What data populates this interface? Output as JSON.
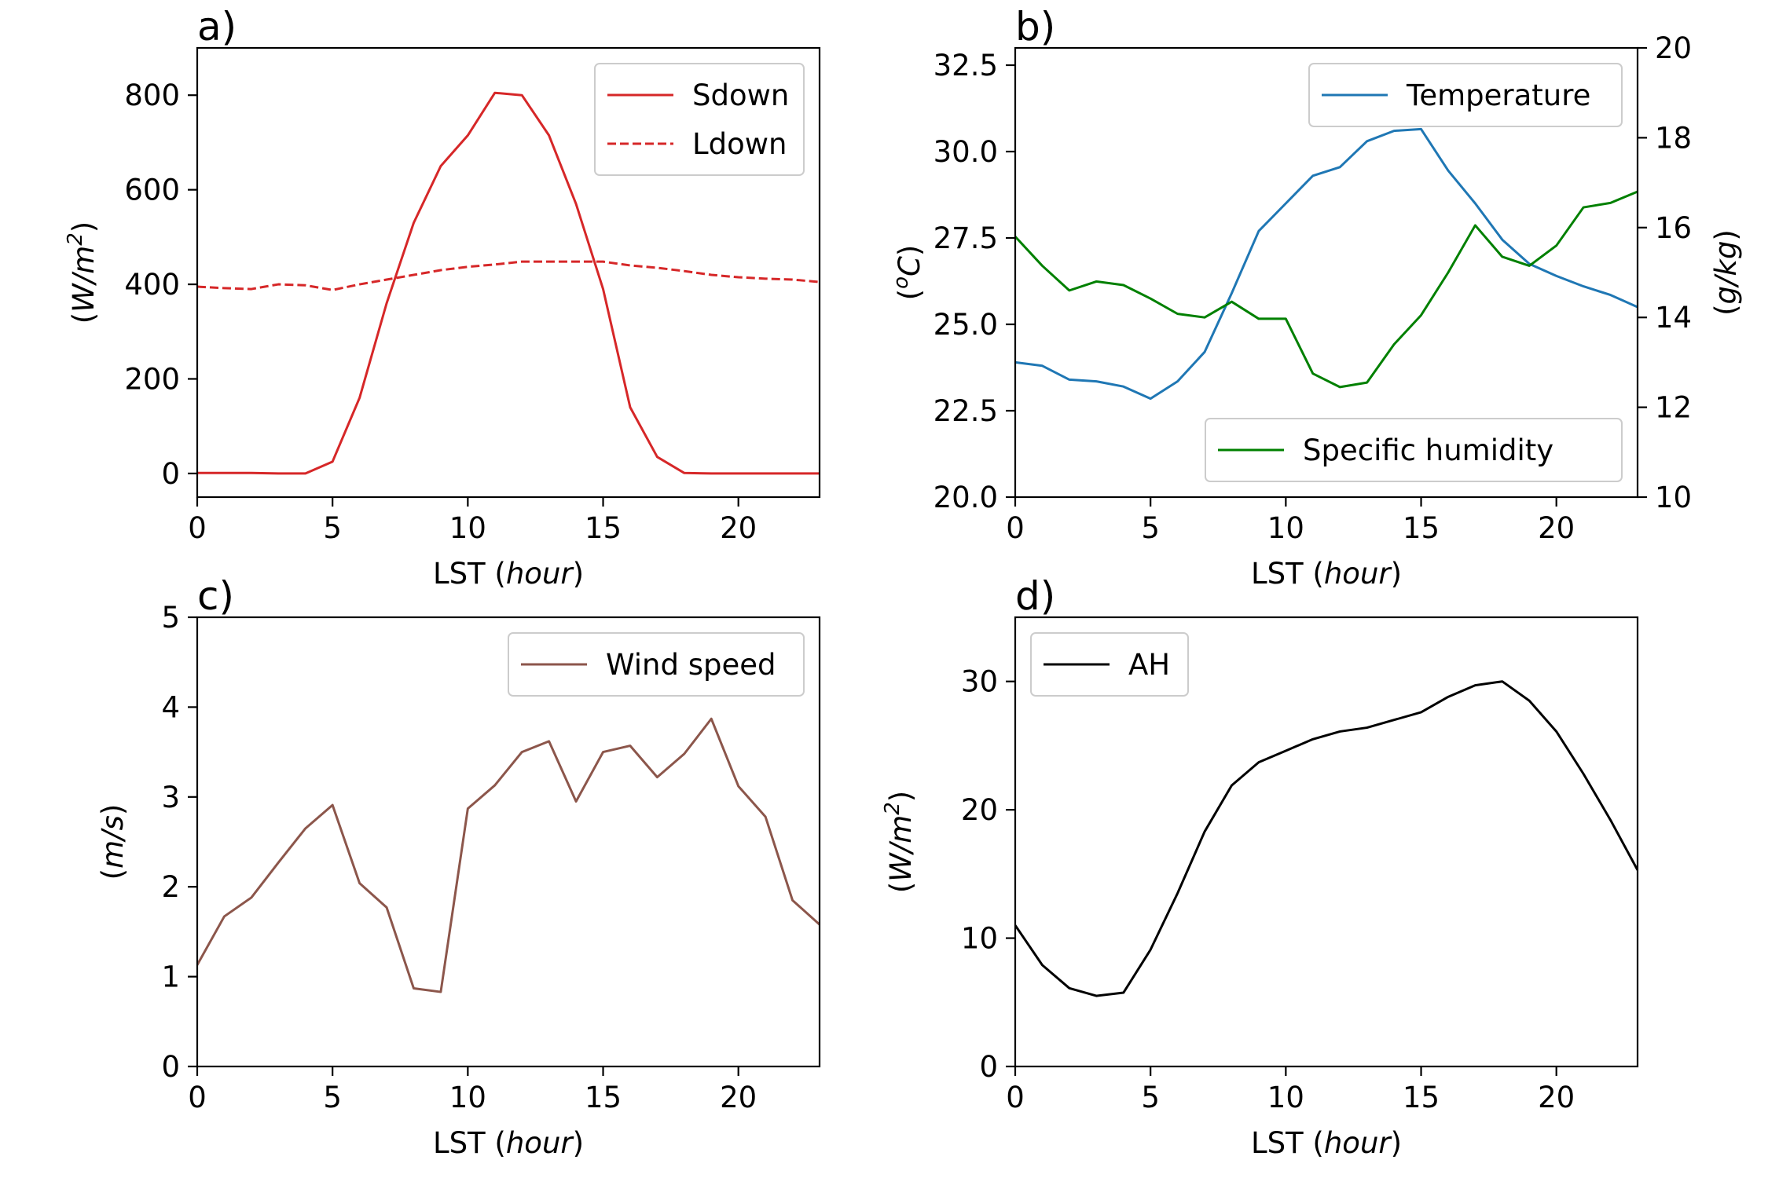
{
  "chart_data": [
    {
      "panel": "a)",
      "type": "line",
      "title": "a)",
      "xlabel": "LST",
      "xlabel_unit": "hour",
      "ylabel": "W/m",
      "ylabel_sup": "2",
      "xlim": [
        0,
        23
      ],
      "ylim": [
        -50,
        900
      ],
      "xticks": [
        0,
        5,
        10,
        15,
        20
      ],
      "yticks": [
        0,
        200,
        400,
        600,
        800
      ],
      "legend_position": "top-right",
      "grid": false,
      "x": [
        0,
        1,
        2,
        3,
        4,
        5,
        6,
        7,
        8,
        9,
        10,
        11,
        12,
        13,
        14,
        15,
        16,
        17,
        18,
        19,
        20,
        21,
        22,
        23
      ],
      "series": [
        {
          "name": "Sdown",
          "color": "#d62728",
          "dash": "solid",
          "values": [
            1,
            1,
            1,
            0,
            0,
            25,
            160,
            360,
            530,
            650,
            715,
            805,
            800,
            715,
            570,
            390,
            140,
            35,
            1,
            0,
            0,
            0,
            0,
            0
          ]
        },
        {
          "name": "Ldown",
          "color": "#d62728",
          "dash": "dashed",
          "values": [
            395,
            392,
            390,
            400,
            398,
            388,
            400,
            410,
            420,
            430,
            437,
            442,
            448,
            448,
            448,
            448,
            440,
            435,
            428,
            420,
            415,
            412,
            410,
            405
          ]
        }
      ]
    },
    {
      "panel": "b)",
      "type": "line",
      "title": "b)",
      "xlabel": "LST",
      "xlabel_unit": "hour",
      "ylabel": "oC",
      "ylabel_right": "g/kg",
      "xlim": [
        0,
        23
      ],
      "ylim": [
        20,
        33
      ],
      "ylim_right": [
        10,
        20
      ],
      "xticks": [
        0,
        5,
        10,
        15,
        20
      ],
      "yticks": [
        "20.0",
        "22.5",
        "25.0",
        "27.5",
        "30.0",
        "32.5"
      ],
      "yticks_right": [
        10,
        12,
        14,
        16,
        18,
        20
      ],
      "grid": false,
      "x": [
        0,
        1,
        2,
        3,
        4,
        5,
        6,
        7,
        8,
        9,
        10,
        11,
        12,
        13,
        14,
        15,
        16,
        17,
        18,
        19,
        20,
        21,
        22,
        23
      ],
      "series": [
        {
          "name": "Temperature",
          "axis": "left",
          "color": "#1f77b4",
          "legend_position": "top-right",
          "values": [
            23.9,
            23.8,
            23.4,
            23.35,
            23.2,
            22.85,
            23.35,
            24.2,
            25.9,
            27.7,
            28.5,
            29.3,
            29.55,
            30.3,
            30.6,
            30.65,
            29.45,
            28.5,
            27.45,
            26.75,
            26.4,
            26.1,
            25.85,
            25.5
          ]
        },
        {
          "name": "Specific humidity",
          "axis": "right",
          "color": "#008000",
          "legend_position": "bottom-right",
          "values": [
            15.8,
            15.15,
            14.6,
            14.8,
            14.72,
            14.42,
            14.08,
            14.0,
            14.35,
            13.97,
            13.97,
            12.75,
            12.45,
            12.55,
            13.4,
            14.05,
            15.0,
            16.05,
            15.35,
            15.15,
            15.6,
            16.45,
            16.55,
            16.8
          ]
        }
      ]
    },
    {
      "panel": "c)",
      "type": "line",
      "title": "c)",
      "xlabel": "LST",
      "xlabel_unit": "hour",
      "ylabel": "m/s",
      "xlim": [
        0,
        23
      ],
      "ylim": [
        0,
        5
      ],
      "xticks": [
        0,
        5,
        10,
        15,
        20
      ],
      "yticks": [
        0,
        1,
        2,
        3,
        4,
        5
      ],
      "legend_position": "top-right",
      "grid": false,
      "x": [
        0,
        1,
        2,
        3,
        4,
        5,
        6,
        7,
        8,
        9,
        10,
        11,
        12,
        13,
        14,
        15,
        16,
        17,
        18,
        19,
        20,
        21,
        22,
        23
      ],
      "series": [
        {
          "name": "Wind speed",
          "color": "#8c564b",
          "values": [
            1.13,
            1.67,
            1.88,
            2.27,
            2.65,
            2.91,
            2.04,
            1.77,
            0.87,
            0.83,
            2.87,
            3.13,
            3.5,
            3.62,
            2.95,
            3.5,
            3.57,
            3.22,
            3.48,
            3.87,
            3.12,
            2.78,
            1.85,
            1.58
          ]
        }
      ]
    },
    {
      "panel": "d)",
      "type": "line",
      "title": "d)",
      "xlabel": "LST",
      "xlabel_unit": "hour",
      "ylabel": "W/m",
      "ylabel_sup": "2",
      "xlim": [
        0,
        23
      ],
      "ylim": [
        0,
        35
      ],
      "xticks": [
        0,
        5,
        10,
        15,
        20
      ],
      "yticks": [
        0,
        10,
        20,
        30
      ],
      "legend_position": "top-left",
      "grid": false,
      "x": [
        0,
        1,
        2,
        3,
        4,
        5,
        6,
        7,
        8,
        9,
        10,
        11,
        12,
        13,
        14,
        15,
        16,
        17,
        18,
        19,
        20,
        21,
        22,
        23
      ],
      "series": [
        {
          "name": "AH",
          "color": "#000000",
          "values": [
            11.0,
            7.9,
            6.1,
            5.5,
            5.75,
            9.1,
            13.5,
            18.3,
            21.9,
            23.7,
            24.6,
            25.5,
            26.1,
            26.4,
            27.0,
            27.6,
            28.8,
            29.7,
            30.0,
            28.5,
            26.1,
            22.8,
            19.2,
            15.3
          ]
        }
      ]
    }
  ]
}
